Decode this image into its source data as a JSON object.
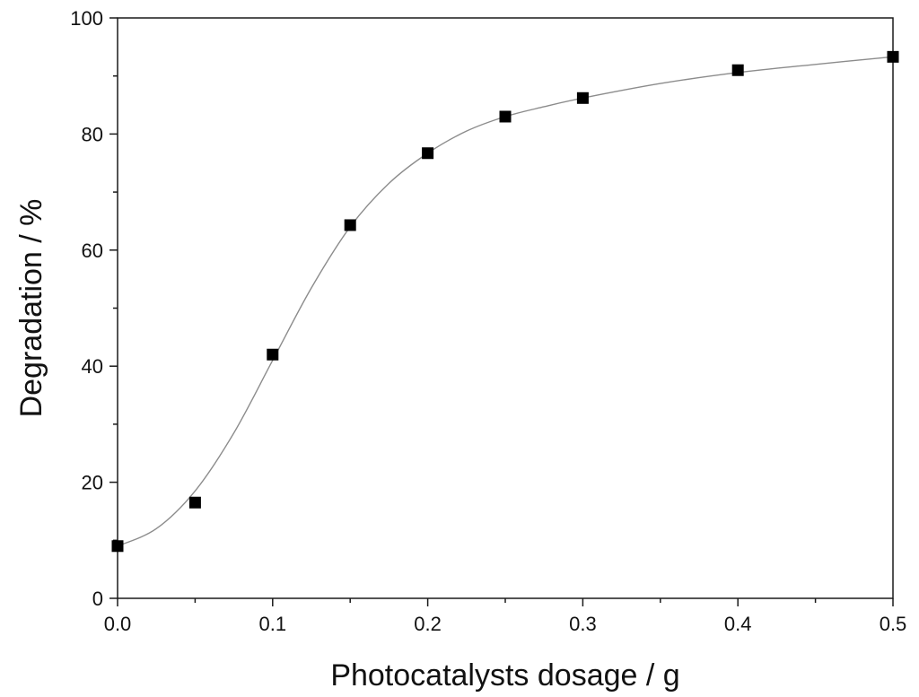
{
  "chart_data": {
    "type": "scatter",
    "title": "",
    "xlabel": "Photocatalysts dosage / g",
    "ylabel": "Degradation / %",
    "xlim": [
      0.0,
      0.5
    ],
    "ylim": [
      0,
      100
    ],
    "x_ticks": [
      0.0,
      0.1,
      0.2,
      0.3,
      0.4,
      0.5
    ],
    "x_tick_labels": [
      "0.0",
      "0.1",
      "0.2",
      "0.3",
      "0.4",
      "0.5"
    ],
    "y_ticks": [
      0,
      20,
      40,
      60,
      80,
      100
    ],
    "y_tick_labels": [
      "0",
      "20",
      "40",
      "60",
      "80",
      "100"
    ],
    "grid": false,
    "legend": "none",
    "series": [
      {
        "marker": "square",
        "x": [
          0.0,
          0.05,
          0.1,
          0.15,
          0.2,
          0.25,
          0.3,
          0.4,
          0.5
        ],
        "y": [
          9.0,
          16.5,
          42.0,
          64.3,
          76.7,
          83.0,
          86.2,
          91.0,
          93.3
        ]
      }
    ],
    "fit_curve": {
      "x": [
        0.0,
        0.025,
        0.05,
        0.075,
        0.1,
        0.125,
        0.15,
        0.175,
        0.2,
        0.225,
        0.25,
        0.275,
        0.3,
        0.35,
        0.4,
        0.45,
        0.5
      ],
      "y": [
        9.0,
        12.0,
        18.5,
        28.5,
        41.0,
        53.5,
        64.0,
        71.5,
        76.7,
        80.5,
        83.0,
        84.7,
        86.2,
        88.7,
        90.6,
        92.0,
        93.3
      ]
    },
    "colors": {
      "marker": "#000000",
      "fit_line": "#8c8c8c",
      "axis": "#1a1a1a"
    }
  }
}
